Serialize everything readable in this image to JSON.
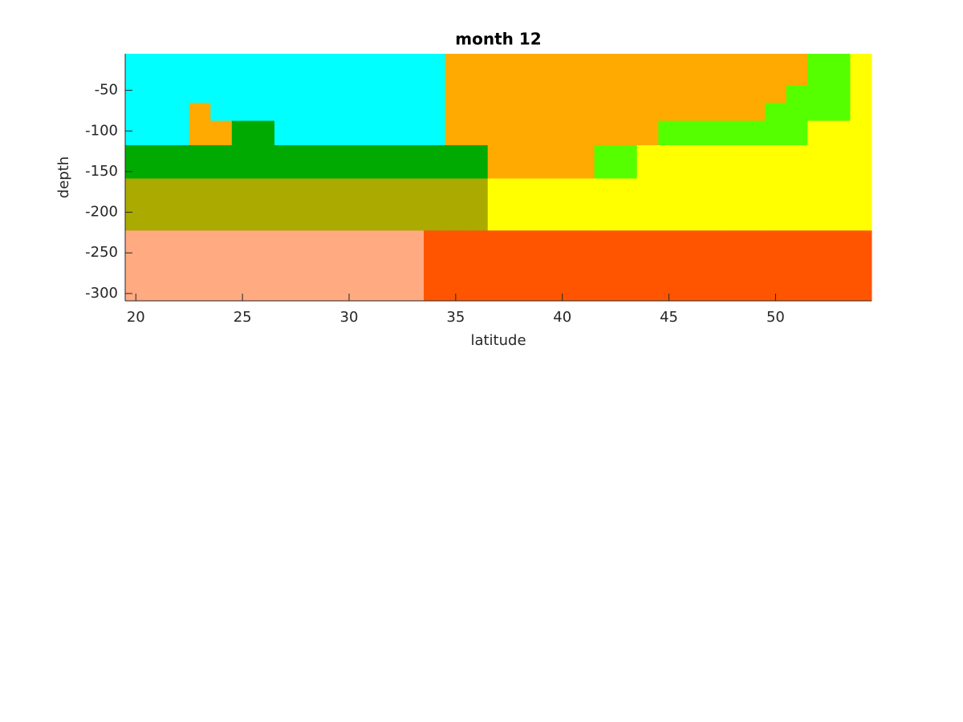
{
  "chart_data": {
    "type": "heatmap",
    "title": "month 12",
    "x_label": "latitude",
    "y_label": "depth",
    "xbins": [
      19.5,
      20.5,
      21.5,
      22.5,
      23.5,
      24.5,
      25.5,
      26.5,
      27.5,
      28.5,
      29.5,
      30.5,
      31.5,
      32.5,
      33.5,
      34.5,
      35.5,
      36.5,
      37.5,
      38.5,
      39.5,
      40.5,
      41.5,
      42.5,
      43.5,
      44.5,
      45.5,
      46.5,
      47.5,
      48.5,
      49.5,
      50.5,
      51.5,
      52.5,
      53.5,
      54.5
    ],
    "ybins": [
      -309,
      -222,
      -158,
      -117,
      -87,
      -65,
      -44,
      -5
    ],
    "colors": [
      "#00ffff",
      "#ffaa00",
      "#00aa00",
      "#aaaa00",
      "#ffaa80",
      "#ff5500",
      "#ffff00",
      "#55ff00"
    ],
    "z": [
      [
        4,
        4,
        4,
        4,
        4,
        4,
        4,
        4,
        4,
        4,
        4,
        4,
        4,
        4,
        5,
        5,
        5,
        5,
        5,
        5,
        5,
        5,
        5,
        5,
        5,
        5,
        5,
        5,
        5,
        5,
        5,
        5,
        5,
        5,
        5
      ],
      [
        3,
        3,
        3,
        3,
        3,
        3,
        3,
        3,
        3,
        3,
        3,
        3,
        3,
        3,
        3,
        3,
        3,
        6,
        6,
        6,
        6,
        6,
        6,
        6,
        6,
        6,
        6,
        6,
        6,
        6,
        6,
        6,
        6,
        6,
        6
      ],
      [
        2,
        2,
        2,
        2,
        2,
        2,
        2,
        2,
        2,
        2,
        2,
        2,
        2,
        2,
        2,
        2,
        2,
        1,
        1,
        1,
        1,
        1,
        7,
        7,
        6,
        6,
        6,
        6,
        6,
        6,
        6,
        6,
        6,
        6,
        6
      ],
      [
        0,
        0,
        0,
        1,
        1,
        2,
        2,
        0,
        0,
        0,
        0,
        0,
        0,
        0,
        0,
        1,
        1,
        1,
        1,
        1,
        1,
        1,
        1,
        1,
        1,
        7,
        7,
        7,
        7,
        7,
        7,
        7,
        6,
        6,
        6
      ],
      [
        0,
        0,
        0,
        1,
        0,
        0,
        0,
        0,
        0,
        0,
        0,
        0,
        0,
        0,
        0,
        1,
        1,
        1,
        1,
        1,
        1,
        1,
        1,
        1,
        1,
        1,
        1,
        1,
        1,
        1,
        7,
        7,
        7,
        7,
        6
      ],
      [
        0,
        0,
        0,
        0,
        0,
        0,
        0,
        0,
        0,
        0,
        0,
        0,
        0,
        0,
        0,
        1,
        1,
        1,
        1,
        1,
        1,
        1,
        1,
        1,
        1,
        1,
        1,
        1,
        1,
        1,
        1,
        7,
        7,
        7,
        6
      ],
      [
        0,
        0,
        0,
        0,
        0,
        0,
        0,
        0,
        0,
        0,
        0,
        0,
        0,
        0,
        0,
        1,
        1,
        1,
        1,
        1,
        1,
        1,
        1,
        1,
        1,
        1,
        1,
        1,
        1,
        1,
        1,
        1,
        7,
        7,
        6
      ]
    ],
    "xlim": [
      19.5,
      54.5
    ],
    "ylim": [
      -309,
      -5
    ],
    "xticks": [
      20,
      25,
      30,
      35,
      40,
      45,
      50
    ],
    "yticks": [
      -300,
      -250,
      -200,
      -150,
      -100,
      -50
    ]
  }
}
